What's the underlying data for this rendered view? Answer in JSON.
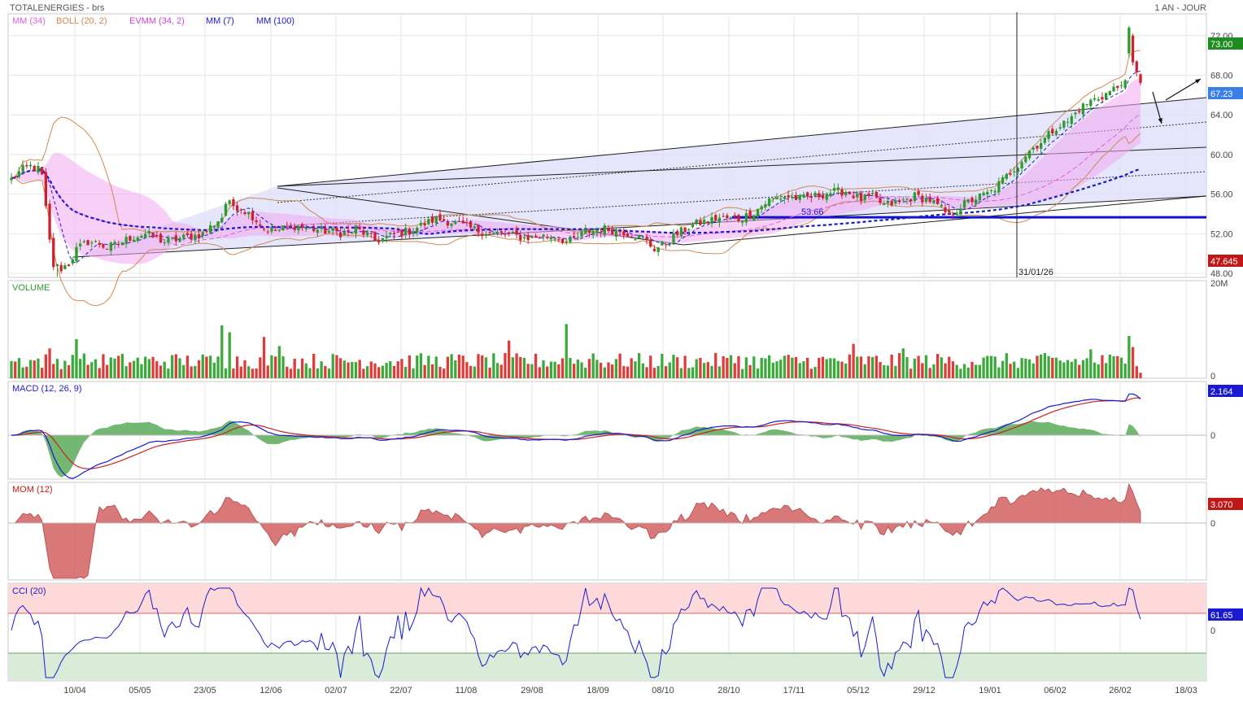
{
  "header": {
    "instrument": "TOTALENERGIES - brs",
    "period": "1 AN - JOUR"
  },
  "legend": [
    {
      "label": "MM (34)",
      "color": "#e060e0"
    },
    {
      "label": "BOLL (20, 2)",
      "color": "#d08850"
    },
    {
      "label": "EVMM (34, 2)",
      "color": "#cc44cc"
    },
    {
      "label": "MM (7)",
      "color": "#1a1ad0"
    },
    {
      "label": "MM (100)",
      "color": "#1a1ad0"
    }
  ],
  "annotations": {
    "vline_date": "31/01/26",
    "hline_value": "53.66",
    "price_badges": [
      {
        "text": "73.00",
        "color": "#1e8c1e"
      },
      {
        "text": "67.23",
        "color": "#3a7ee8"
      },
      {
        "text": "47.645",
        "color": "#c01818"
      }
    ]
  },
  "chart_data": [
    {
      "type": "candlestick",
      "title": "TOTALENERGIES - brs",
      "ylim": [
        47.6,
        74.2
      ],
      "y_ticks": [
        "72.00",
        "68.00",
        "64.00",
        "60.00",
        "56.00",
        "52.00",
        "48.00"
      ],
      "x_ticks": [
        "10/04",
        "05/05",
        "23/05",
        "12/06",
        "02/07",
        "22/07",
        "11/08",
        "29/08",
        "18/09",
        "08/10",
        "28/10",
        "17/11",
        "05/12",
        "29/12",
        "19/01",
        "06/02",
        "26/02",
        "18/03"
      ],
      "last_close": 67.23,
      "high": 73.0,
      "low": 47.645,
      "key_levels": [
        53.66
      ],
      "close_keypoints": [
        [
          0,
          57.5
        ],
        [
          3,
          58.5
        ],
        [
          5,
          58.8
        ],
        [
          7,
          58.5
        ],
        [
          8,
          57.8
        ],
        [
          10,
          51.2
        ],
        [
          11,
          48.8
        ],
        [
          13,
          48.5
        ],
        [
          15,
          49.0
        ],
        [
          17,
          50.4
        ],
        [
          20,
          51.2
        ],
        [
          23,
          51.0
        ],
        [
          25,
          50.6
        ],
        [
          28,
          51.0
        ],
        [
          31,
          51.6
        ],
        [
          35,
          52.0
        ],
        [
          40,
          51.2
        ],
        [
          45,
          51.6
        ],
        [
          50,
          52.0
        ],
        [
          55,
          53.7
        ],
        [
          56,
          55.1
        ],
        [
          60,
          54.6
        ],
        [
          63,
          53.8
        ],
        [
          66,
          52.5
        ],
        [
          69,
          52.3
        ],
        [
          74,
          52.8
        ],
        [
          78,
          52.5
        ],
        [
          84,
          52.2
        ],
        [
          88,
          52.0
        ],
        [
          90,
          52.5
        ],
        [
          93,
          51.9
        ],
        [
          95,
          51.3
        ],
        [
          97,
          51.5
        ],
        [
          100,
          51.9
        ],
        [
          104,
          52.3
        ],
        [
          108,
          53.0
        ],
        [
          111,
          53.5
        ],
        [
          115,
          53.2
        ],
        [
          118,
          52.8
        ],
        [
          122,
          52.3
        ],
        [
          126,
          52.0
        ],
        [
          130,
          51.9
        ],
        [
          134,
          51.6
        ],
        [
          138,
          51.7
        ],
        [
          142,
          51.8
        ],
        [
          145,
          51.2
        ],
        [
          147,
          51.4
        ],
        [
          150,
          52.2
        ],
        [
          155,
          52.5
        ],
        [
          160,
          52.2
        ],
        [
          165,
          51.5
        ],
        [
          168,
          50.5
        ],
        [
          170,
          50.8
        ],
        [
          174,
          52.0
        ],
        [
          178,
          52.9
        ],
        [
          182,
          53.3
        ],
        [
          185,
          53.6
        ],
        [
          190,
          53.5
        ],
        [
          194,
          54.2
        ],
        [
          198,
          55.4
        ],
        [
          202,
          55.8
        ],
        [
          206,
          55.5
        ],
        [
          210,
          55.8
        ],
        [
          214,
          56.2
        ],
        [
          218,
          56.3
        ],
        [
          222,
          55.5
        ],
        [
          225,
          55.7
        ],
        [
          228,
          54.9
        ],
        [
          232,
          55.2
        ],
        [
          236,
          55.8
        ],
        [
          240,
          55.4
        ],
        [
          243,
          54.5
        ],
        [
          245,
          53.8
        ],
        [
          248,
          54.8
        ],
        [
          252,
          55.6
        ],
        [
          256,
          56.2
        ],
        [
          260,
          57.8
        ],
        [
          263,
          59.0
        ],
        [
          266,
          60.4
        ],
        [
          270,
          61.6
        ],
        [
          273,
          62.8
        ],
        [
          276,
          63.3
        ],
        [
          279,
          64.6
        ],
        [
          282,
          65.4
        ],
        [
          285,
          65.9
        ],
        [
          288,
          66.6
        ],
        [
          290,
          67.0
        ],
        [
          291,
          67.5
        ],
        [
          292,
          72.8
        ],
        [
          293,
          69.3
        ],
        [
          294,
          68.3
        ],
        [
          295,
          67.23
        ]
      ],
      "volume": {
        "ylim": [
          0,
          20000000
        ],
        "y_ticks": [
          "20M",
          "0"
        ],
        "title": "VOLUME"
      },
      "macd": {
        "title": "MACD (12, 26, 9)",
        "last": 2.164,
        "y_ticks": [
          "0"
        ]
      },
      "mom": {
        "title": "MOM (12)",
        "last": 3.07,
        "y_ticks": [
          "0"
        ]
      },
      "cci": {
        "title": "CCI (20)",
        "last": 61.65,
        "y_ticks": [
          "0"
        ]
      }
    }
  ],
  "side_badges": [
    {
      "text": "2.164",
      "color": "#1a1ad0"
    },
    {
      "text": "3.070",
      "color": "#c01818"
    },
    {
      "text": "61.65",
      "color": "#1a1ad0"
    }
  ]
}
